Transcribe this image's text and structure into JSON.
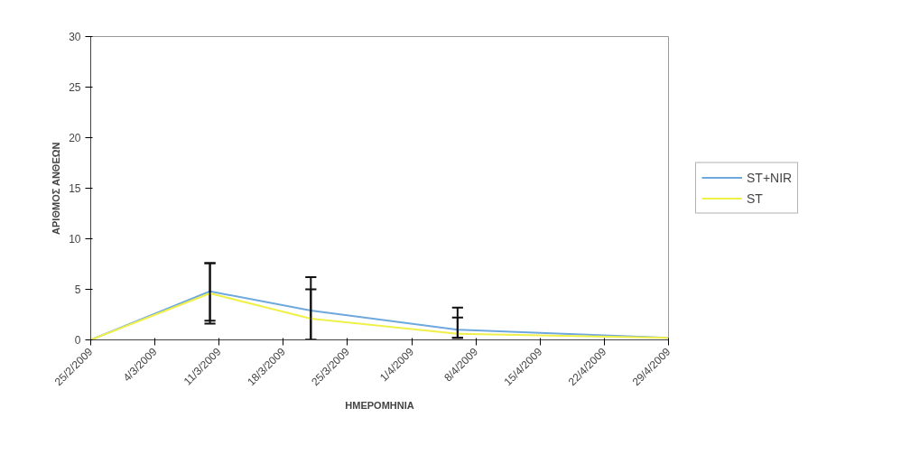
{
  "chart_data": {
    "type": "line",
    "xlabel": "ΗΜΕΡΟΜΗΝΙΑ",
    "ylabel": "ΑΡΙΘΜΟΣ ΑΝΘΕΩΝ",
    "x": [
      "2009-02-25",
      "2009-03-10",
      "2009-03-21",
      "2009-04-06",
      "2009-04-29"
    ],
    "series": [
      {
        "name": "ST+NIR",
        "color": "#6fa8dc",
        "values": [
          0,
          4.8,
          2.9,
          1.0,
          0.2
        ],
        "errors": [
          null,
          [
            1.9,
            7.6
          ],
          [
            0,
            6.2
          ],
          [
            0.2,
            3.2
          ],
          null
        ]
      },
      {
        "name": "ST",
        "color": "#f0f04a",
        "values": [
          0,
          4.6,
          2.1,
          0.6,
          0.2
        ],
        "errors": [
          null,
          [
            1.6,
            7.6
          ],
          [
            0,
            5.0
          ],
          [
            0.2,
            2.2
          ],
          null
        ]
      }
    ],
    "xlim": [
      "2009-02-25",
      "2009-04-29"
    ],
    "xticks": [
      {
        "value": "2009-02-25",
        "label": "25/2/2009"
      },
      {
        "value": "2009-03-04",
        "label": "4/3/2009"
      },
      {
        "value": "2009-03-11",
        "label": "11/3/2009"
      },
      {
        "value": "2009-03-18",
        "label": "18/3/2009"
      },
      {
        "value": "2009-03-25",
        "label": "25/3/2009"
      },
      {
        "value": "2009-04-01",
        "label": "1/4/2009"
      },
      {
        "value": "2009-04-08",
        "label": "8/4/2009"
      },
      {
        "value": "2009-04-15",
        "label": "15/4/2009"
      },
      {
        "value": "2009-04-22",
        "label": "22/4/2009"
      },
      {
        "value": "2009-04-29",
        "label": "29/4/2009"
      }
    ],
    "ylim": [
      0,
      30
    ],
    "yticks": [
      0,
      5,
      10,
      15,
      20,
      25,
      30
    ],
    "grid": false,
    "legend": "right"
  }
}
